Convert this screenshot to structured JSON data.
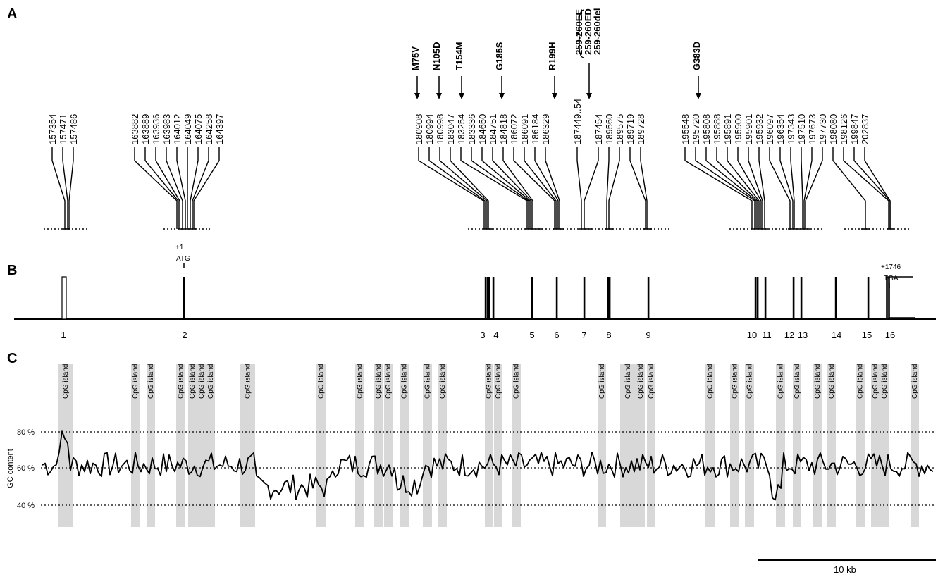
{
  "panels": {
    "a": "A",
    "b": "B",
    "c": "C"
  },
  "panel_a": {
    "positions": [
      "157354",
      "157471",
      "157486",
      "163882",
      "163889",
      "163936",
      "163983",
      "164012",
      "164049",
      "164075",
      "164258",
      "164397",
      "180908",
      "180994",
      "180998",
      "183047",
      "183254",
      "183336",
      "184650",
      "184751",
      "184818",
      "186072",
      "186091",
      "186184",
      "186329",
      "187449..54",
      "187454",
      "189560",
      "189575",
      "189719",
      "189728",
      "195548",
      "195720",
      "195808",
      "195888",
      "195891",
      "195900",
      "195901",
      "195932",
      "196097",
      "196354",
      "197343",
      "197510",
      "197673",
      "197730",
      "198080",
      "198126",
      "199847",
      "202837"
    ],
    "mutations": [
      "M75V",
      "N105D",
      "T154M",
      "G185S",
      "R199H",
      "259-260EE",
      "259-260ED",
      "259-260del",
      "G383D"
    ]
  },
  "panel_b": {
    "start_codon": {
      "position": "+1",
      "codon": "ATG"
    },
    "stop_codon": {
      "position": "+1746",
      "codon": "TGA"
    },
    "exon_numbers": [
      "1",
      "2",
      "3",
      "4",
      "5",
      "6",
      "7",
      "8",
      "9",
      "10",
      "11",
      "12",
      "13",
      "14",
      "15",
      "16"
    ]
  },
  "panel_c": {
    "cpg_label": "CpG island",
    "y_axis_label": "GC content",
    "y_ticks": [
      "80 %",
      "60 %",
      "40 %"
    ],
    "gc_range": [
      40,
      80
    ]
  },
  "scale_bar": {
    "label": "10 kb"
  }
}
